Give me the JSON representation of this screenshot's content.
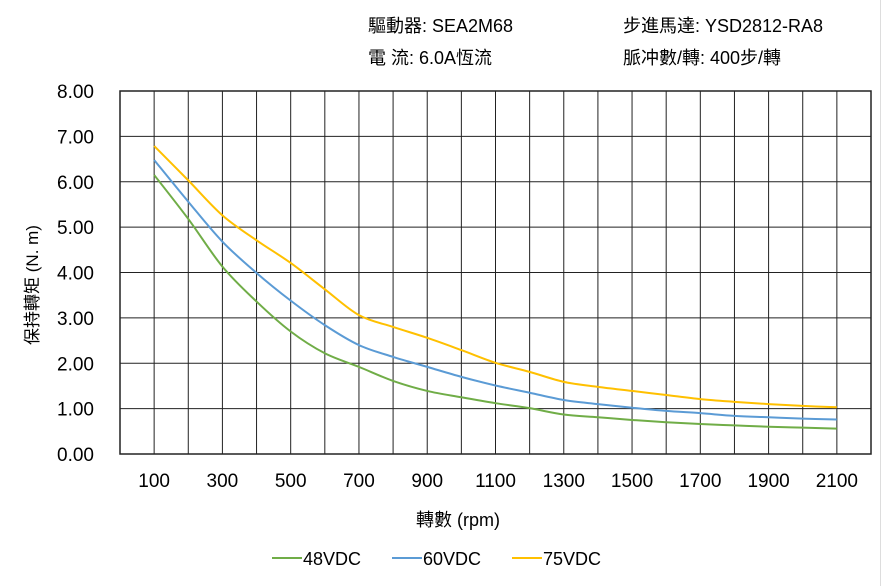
{
  "header": {
    "driver": "驅動器:  SEA2M68",
    "motor": "步進馬達:  YSD2812-RA8",
    "current": "電    流:  6.0A恆流",
    "pulses": "脈冲數/轉:  400步/轉"
  },
  "chart_data": {
    "type": "line",
    "title": "",
    "xlabel": "轉數 (rpm)",
    "ylabel": "保持轉矩 (N. m)",
    "xlim": [
      0,
      2200
    ],
    "ylim": [
      0,
      8
    ],
    "grid": true,
    "legend": "bottom",
    "x_ticks": [
      "100",
      "300",
      "500",
      "700",
      "900",
      "1100",
      "1300",
      "1500",
      "1700",
      "1900",
      "2100"
    ],
    "y_ticks": [
      "0.00",
      "1.00",
      "2.00",
      "3.00",
      "4.00",
      "5.00",
      "6.00",
      "7.00",
      "8.00"
    ],
    "x": [
      100,
      200,
      300,
      400,
      500,
      600,
      700,
      800,
      900,
      1000,
      1100,
      1200,
      1300,
      1400,
      1500,
      1600,
      1700,
      1800,
      1900,
      2000,
      2100
    ],
    "series": [
      {
        "name": "48VDC",
        "color": "#70ad47",
        "values": [
          6.15,
          5.18,
          4.13,
          3.36,
          2.7,
          2.22,
          1.92,
          1.61,
          1.39,
          1.25,
          1.12,
          1.01,
          0.87,
          0.81,
          0.75,
          0.7,
          0.66,
          0.63,
          0.6,
          0.58,
          0.56
        ]
      },
      {
        "name": "60VDC",
        "color": "#5b9bd5",
        "values": [
          6.48,
          5.56,
          4.68,
          3.99,
          3.38,
          2.84,
          2.4,
          2.14,
          1.92,
          1.7,
          1.51,
          1.35,
          1.19,
          1.1,
          1.02,
          0.95,
          0.9,
          0.84,
          0.81,
          0.78,
          0.76
        ]
      },
      {
        "name": "75VDC",
        "color": "#ffc000",
        "values": [
          6.79,
          6.03,
          5.26,
          4.71,
          4.21,
          3.63,
          3.06,
          2.8,
          2.56,
          2.29,
          2.01,
          1.81,
          1.59,
          1.48,
          1.39,
          1.3,
          1.21,
          1.15,
          1.1,
          1.06,
          1.03
        ]
      }
    ]
  }
}
